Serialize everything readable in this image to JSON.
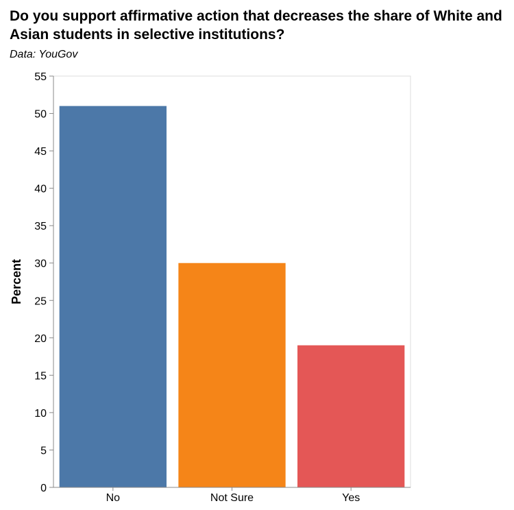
{
  "chart_data": {
    "type": "bar",
    "title": "Do you support affirmative action that decreases the share of White and Asian students in selective institutions?",
    "subtitle": "Data: YouGov",
    "xlabel": "",
    "ylabel": "Percent",
    "categories": [
      "No",
      "Not Sure",
      "Yes"
    ],
    "values": [
      51,
      30,
      19
    ],
    "colors": [
      "#4c78a8",
      "#f58518",
      "#e45756"
    ],
    "ylim": [
      0,
      55
    ],
    "yticks": [
      0,
      5,
      10,
      15,
      20,
      25,
      30,
      35,
      40,
      45,
      50,
      55
    ],
    "grid": false,
    "legend": "none"
  }
}
